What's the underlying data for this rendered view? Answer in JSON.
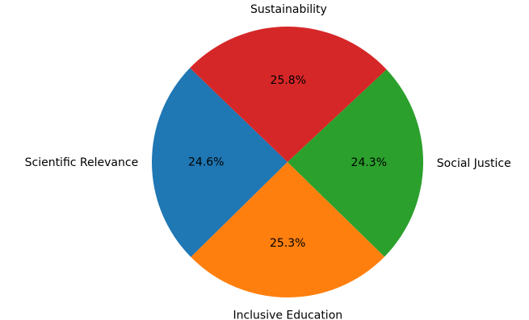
{
  "chart_data": {
    "type": "pie",
    "title": "",
    "slices": [
      {
        "label": "Scientific Relevance",
        "value": 24.6,
        "pct_label": "24.6%",
        "color": "#1f77b4"
      },
      {
        "label": "Inclusive Education",
        "value": 25.3,
        "pct_label": "25.3%",
        "color": "#ff7f0e"
      },
      {
        "label": "Social Justice",
        "value": 24.3,
        "pct_label": "24.3%",
        "color": "#2ca02c"
      },
      {
        "label": "Sustainability",
        "value": 25.8,
        "pct_label": "25.8%",
        "color": "#d62728"
      }
    ],
    "start_angle_deg": 136,
    "direction": "counterclockwise",
    "legend": "none"
  }
}
